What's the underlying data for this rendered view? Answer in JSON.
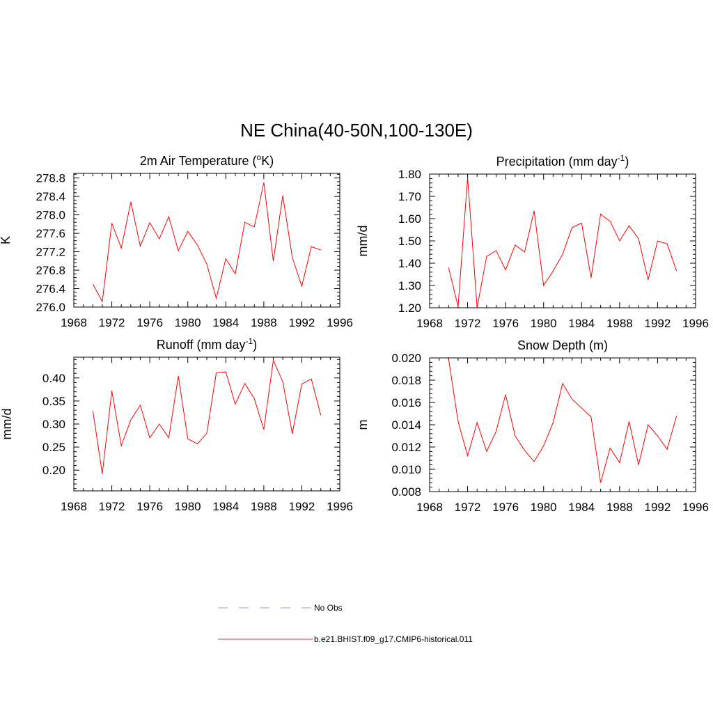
{
  "figure": {
    "title": "NE China(40-50N,100-130E)"
  },
  "legend": {
    "items": [
      {
        "label": "No Obs",
        "color": "#9999ff",
        "dash": true
      },
      {
        "label": "b.e21.BHIST.f09_g17.CMIP6-historical.011",
        "color": "#ff3333",
        "dash": false
      }
    ]
  },
  "chart_data": [
    {
      "type": "line",
      "title": "2m Air Temperature (",
      "title_sup": "o",
      "title_after": "K)",
      "ylabel": "K",
      "xlim": [
        1968,
        1996
      ],
      "ylim": [
        276.0,
        278.9
      ],
      "xticks": [
        1968,
        1972,
        1976,
        1980,
        1984,
        1988,
        1992,
        1996
      ],
      "yticks": [
        276.0,
        276.4,
        276.8,
        277.2,
        277.6,
        278.0,
        278.4,
        278.8
      ],
      "ytick_labels": [
        "276.0",
        "276.4",
        "276.8",
        "277.2",
        "277.6",
        "278.0",
        "278.4",
        "278.8"
      ],
      "series": [
        {
          "color": "#ff0000",
          "x": [
            1970,
            1971,
            1972,
            1973,
            1974,
            1975,
            1976,
            1977,
            1978,
            1979,
            1980,
            1981,
            1982,
            1983,
            1984,
            1985,
            1986,
            1987,
            1988,
            1989,
            1990,
            1991,
            1992,
            1993,
            1994
          ],
          "y": [
            276.5,
            276.12,
            277.82,
            277.28,
            278.28,
            277.32,
            277.83,
            277.48,
            277.96,
            277.22,
            277.64,
            277.35,
            276.93,
            276.19,
            277.05,
            276.72,
            277.84,
            277.74,
            278.7,
            277.0,
            278.42,
            277.08,
            276.45,
            277.31,
            277.24
          ]
        }
      ]
    },
    {
      "type": "line",
      "title": "Precipitation (mm day",
      "title_sup": "-1",
      "title_after": ")",
      "ylabel": "mm/d",
      "xlim": [
        1968,
        1996
      ],
      "ylim": [
        1.2,
        1.8
      ],
      "xticks": [
        1968,
        1972,
        1976,
        1980,
        1984,
        1988,
        1992,
        1996
      ],
      "yticks": [
        1.2,
        1.3,
        1.4,
        1.5,
        1.6,
        1.7,
        1.8
      ],
      "ytick_labels": [
        "1.20",
        "1.30",
        "1.40",
        "1.50",
        "1.60",
        "1.70",
        "1.80"
      ],
      "series": [
        {
          "color": "#ff0000",
          "x": [
            1970,
            1971,
            1972,
            1973,
            1974,
            1975,
            1976,
            1977,
            1978,
            1979,
            1980,
            1981,
            1982,
            1983,
            1984,
            1985,
            1986,
            1987,
            1988,
            1989,
            1990,
            1991,
            1992,
            1993,
            1994
          ],
          "y": [
            1.38,
            1.205,
            1.785,
            1.2,
            1.43,
            1.457,
            1.37,
            1.482,
            1.45,
            1.635,
            1.3,
            1.365,
            1.44,
            1.56,
            1.58,
            1.335,
            1.62,
            1.588,
            1.5,
            1.568,
            1.51,
            1.325,
            1.5,
            1.487,
            1.365
          ]
        }
      ]
    },
    {
      "type": "line",
      "title": "Runoff (mm day",
      "title_sup": "-1",
      "title_after": ")",
      "ylabel": "mm/d",
      "xlim": [
        1968,
        1996
      ],
      "ylim": [
        0.155,
        0.445
      ],
      "xticks": [
        1968,
        1972,
        1976,
        1980,
        1984,
        1988,
        1992,
        1996
      ],
      "yticks": [
        0.2,
        0.25,
        0.3,
        0.35,
        0.4
      ],
      "ytick_labels": [
        "0.20",
        "0.25",
        "0.30",
        "0.35",
        "0.40"
      ],
      "series": [
        {
          "color": "#ff0000",
          "x": [
            1970,
            1971,
            1972,
            1973,
            1974,
            1975,
            1976,
            1977,
            1978,
            1979,
            1980,
            1981,
            1982,
            1983,
            1984,
            1985,
            1986,
            1987,
            1988,
            1989,
            1990,
            1991,
            1992,
            1993,
            1994
          ],
          "y": [
            0.329,
            0.192,
            0.372,
            0.253,
            0.309,
            0.341,
            0.27,
            0.3,
            0.27,
            0.404,
            0.268,
            0.257,
            0.28,
            0.411,
            0.413,
            0.343,
            0.388,
            0.355,
            0.288,
            0.438,
            0.392,
            0.279,
            0.387,
            0.398,
            0.319
          ]
        }
      ]
    },
    {
      "type": "line",
      "title": "Snow Depth (m)",
      "title_sup": "",
      "title_after": "",
      "ylabel": "m",
      "xlim": [
        1968,
        1996
      ],
      "ylim": [
        0.008,
        0.02
      ],
      "xticks": [
        1968,
        1972,
        1976,
        1980,
        1984,
        1988,
        1992,
        1996
      ],
      "yticks": [
        0.008,
        0.01,
        0.012,
        0.014,
        0.016,
        0.018,
        0.02
      ],
      "ytick_labels": [
        "0.008",
        "0.010",
        "0.012",
        "0.014",
        "0.016",
        "0.018",
        "0.020"
      ],
      "series": [
        {
          "color": "#ff0000",
          "x": [
            1970,
            1971,
            1972,
            1973,
            1974,
            1975,
            1976,
            1977,
            1978,
            1979,
            1980,
            1981,
            1982,
            1983,
            1984,
            1985,
            1986,
            1987,
            1988,
            1989,
            1990,
            1991,
            1992,
            1993,
            1994
          ],
          "y": [
            0.0199,
            0.0143,
            0.0112,
            0.0142,
            0.0116,
            0.0134,
            0.0167,
            0.013,
            0.0117,
            0.0107,
            0.0121,
            0.0142,
            0.0177,
            0.0163,
            0.0155,
            0.0147,
            0.0088,
            0.0119,
            0.0106,
            0.0143,
            0.0104,
            0.014,
            0.013,
            0.0118,
            0.0148
          ]
        }
      ]
    }
  ]
}
